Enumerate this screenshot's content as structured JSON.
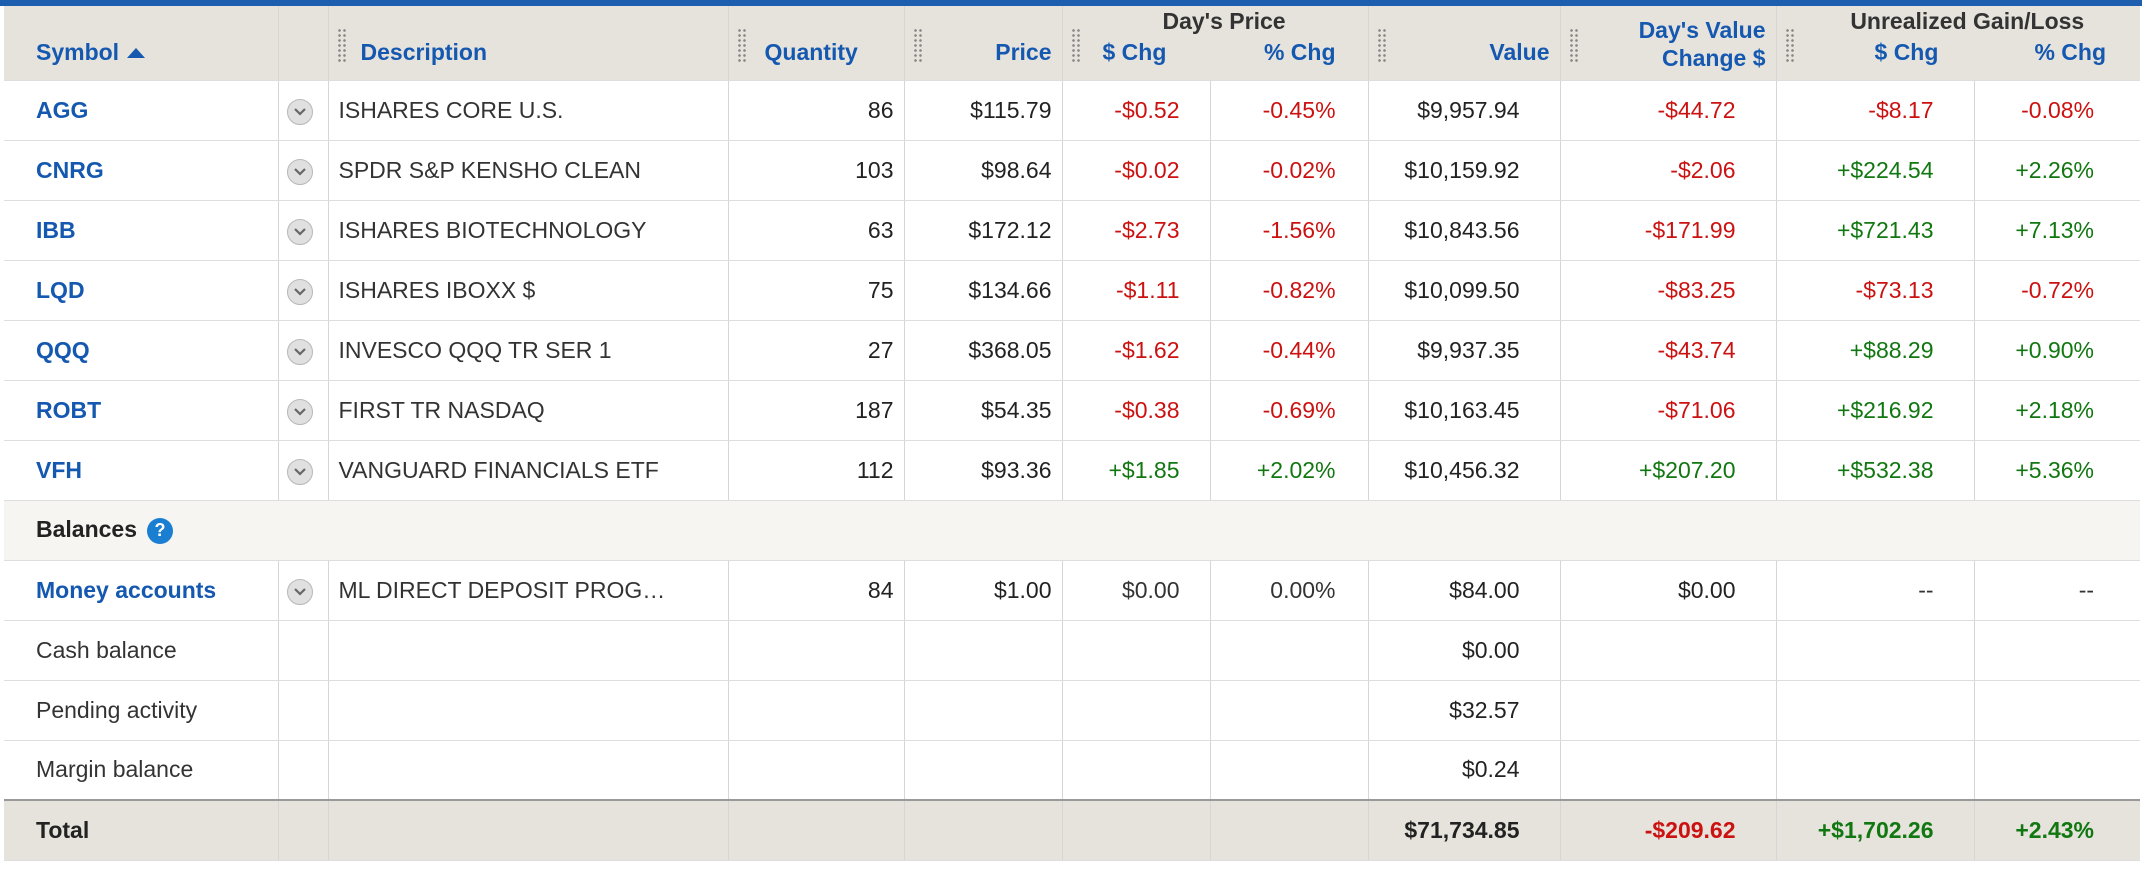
{
  "header": {
    "symbol": "Symbol",
    "description": "Description",
    "quantity": "Quantity",
    "price": "Price",
    "days_price_group": "Day's Price",
    "days_price_dollar": "$ Chg",
    "days_price_pct": "% Chg",
    "value": "Value",
    "days_value_line1": "Day's Value",
    "days_value_line2": "Change $",
    "unrealized_group": "Unrealized Gain/Loss",
    "unrealized_dollar": "$ Chg",
    "unrealized_pct": "% Chg"
  },
  "holdings": [
    {
      "symbol": "AGG",
      "description": "ISHARES CORE U.S.",
      "quantity": "86",
      "price": "$115.79",
      "day_chg": "-$0.52",
      "day_pct": "-0.45%",
      "value": "$9,957.94",
      "day_value_chg": "-$44.72",
      "unreal_chg": "-$8.17",
      "unreal_pct": "-0.08%"
    },
    {
      "symbol": "CNRG",
      "description": "SPDR S&P KENSHO CLEAN",
      "quantity": "103",
      "price": "$98.64",
      "day_chg": "-$0.02",
      "day_pct": "-0.02%",
      "value": "$10,159.92",
      "day_value_chg": "-$2.06",
      "unreal_chg": "+$224.54",
      "unreal_pct": "+2.26%"
    },
    {
      "symbol": "IBB",
      "description": "ISHARES BIOTECHNOLOGY",
      "quantity": "63",
      "price": "$172.12",
      "day_chg": "-$2.73",
      "day_pct": "-1.56%",
      "value": "$10,843.56",
      "day_value_chg": "-$171.99",
      "unreal_chg": "+$721.43",
      "unreal_pct": "+7.13%"
    },
    {
      "symbol": "LQD",
      "description": "ISHARES IBOXX $",
      "quantity": "75",
      "price": "$134.66",
      "day_chg": "-$1.11",
      "day_pct": "-0.82%",
      "value": "$10,099.50",
      "day_value_chg": "-$83.25",
      "unreal_chg": "-$73.13",
      "unreal_pct": "-0.72%"
    },
    {
      "symbol": "QQQ",
      "description": "INVESCO QQQ TR SER 1",
      "quantity": "27",
      "price": "$368.05",
      "day_chg": "-$1.62",
      "day_pct": "-0.44%",
      "value": "$9,937.35",
      "day_value_chg": "-$43.74",
      "unreal_chg": "+$88.29",
      "unreal_pct": "+0.90%"
    },
    {
      "symbol": "ROBT",
      "description": "FIRST TR NASDAQ",
      "quantity": "187",
      "price": "$54.35",
      "day_chg": "-$0.38",
      "day_pct": "-0.69%",
      "value": "$10,163.45",
      "day_value_chg": "-$71.06",
      "unreal_chg": "+$216.92",
      "unreal_pct": "+2.18%"
    },
    {
      "symbol": "VFH",
      "description": "VANGUARD FINANCIALS ETF",
      "quantity": "112",
      "price": "$93.36",
      "day_chg": "+$1.85",
      "day_pct": "+2.02%",
      "value": "$10,456.32",
      "day_value_chg": "+$207.20",
      "unreal_chg": "+$532.38",
      "unreal_pct": "+5.36%"
    }
  ],
  "balances": {
    "title": "Balances",
    "help_glyph": "?",
    "money": {
      "label": "Money accounts",
      "description": "ML DIRECT DEPOSIT PROG…",
      "quantity": "84",
      "price": "$1.00",
      "day_chg": "$0.00",
      "day_pct": "0.00%",
      "value": "$84.00",
      "day_value_chg": "$0.00",
      "unreal_chg": "--",
      "unreal_pct": "--"
    },
    "cash": {
      "label": "Cash balance",
      "value": "$0.00"
    },
    "pending": {
      "label": "Pending activity",
      "value": "$32.57"
    },
    "margin": {
      "label": "Margin balance",
      "value": "$0.24"
    }
  },
  "total": {
    "label": "Total",
    "value": "$71,734.85",
    "day_value_chg": "-$209.62",
    "unreal_chg": "+$1,702.26",
    "unreal_pct": "+2.43%"
  },
  "colors": {
    "link": "#1558b0",
    "negative": "#cc1111",
    "positive": "#117711",
    "header_bg": "#e6e3dd",
    "top_bar": "#1d5fae"
  },
  "icons": {
    "row_menu": "chevron-down-icon",
    "help": "help-circle-icon",
    "sort": "sort-ascending-icon",
    "column_grip": "column-grip-icon"
  }
}
